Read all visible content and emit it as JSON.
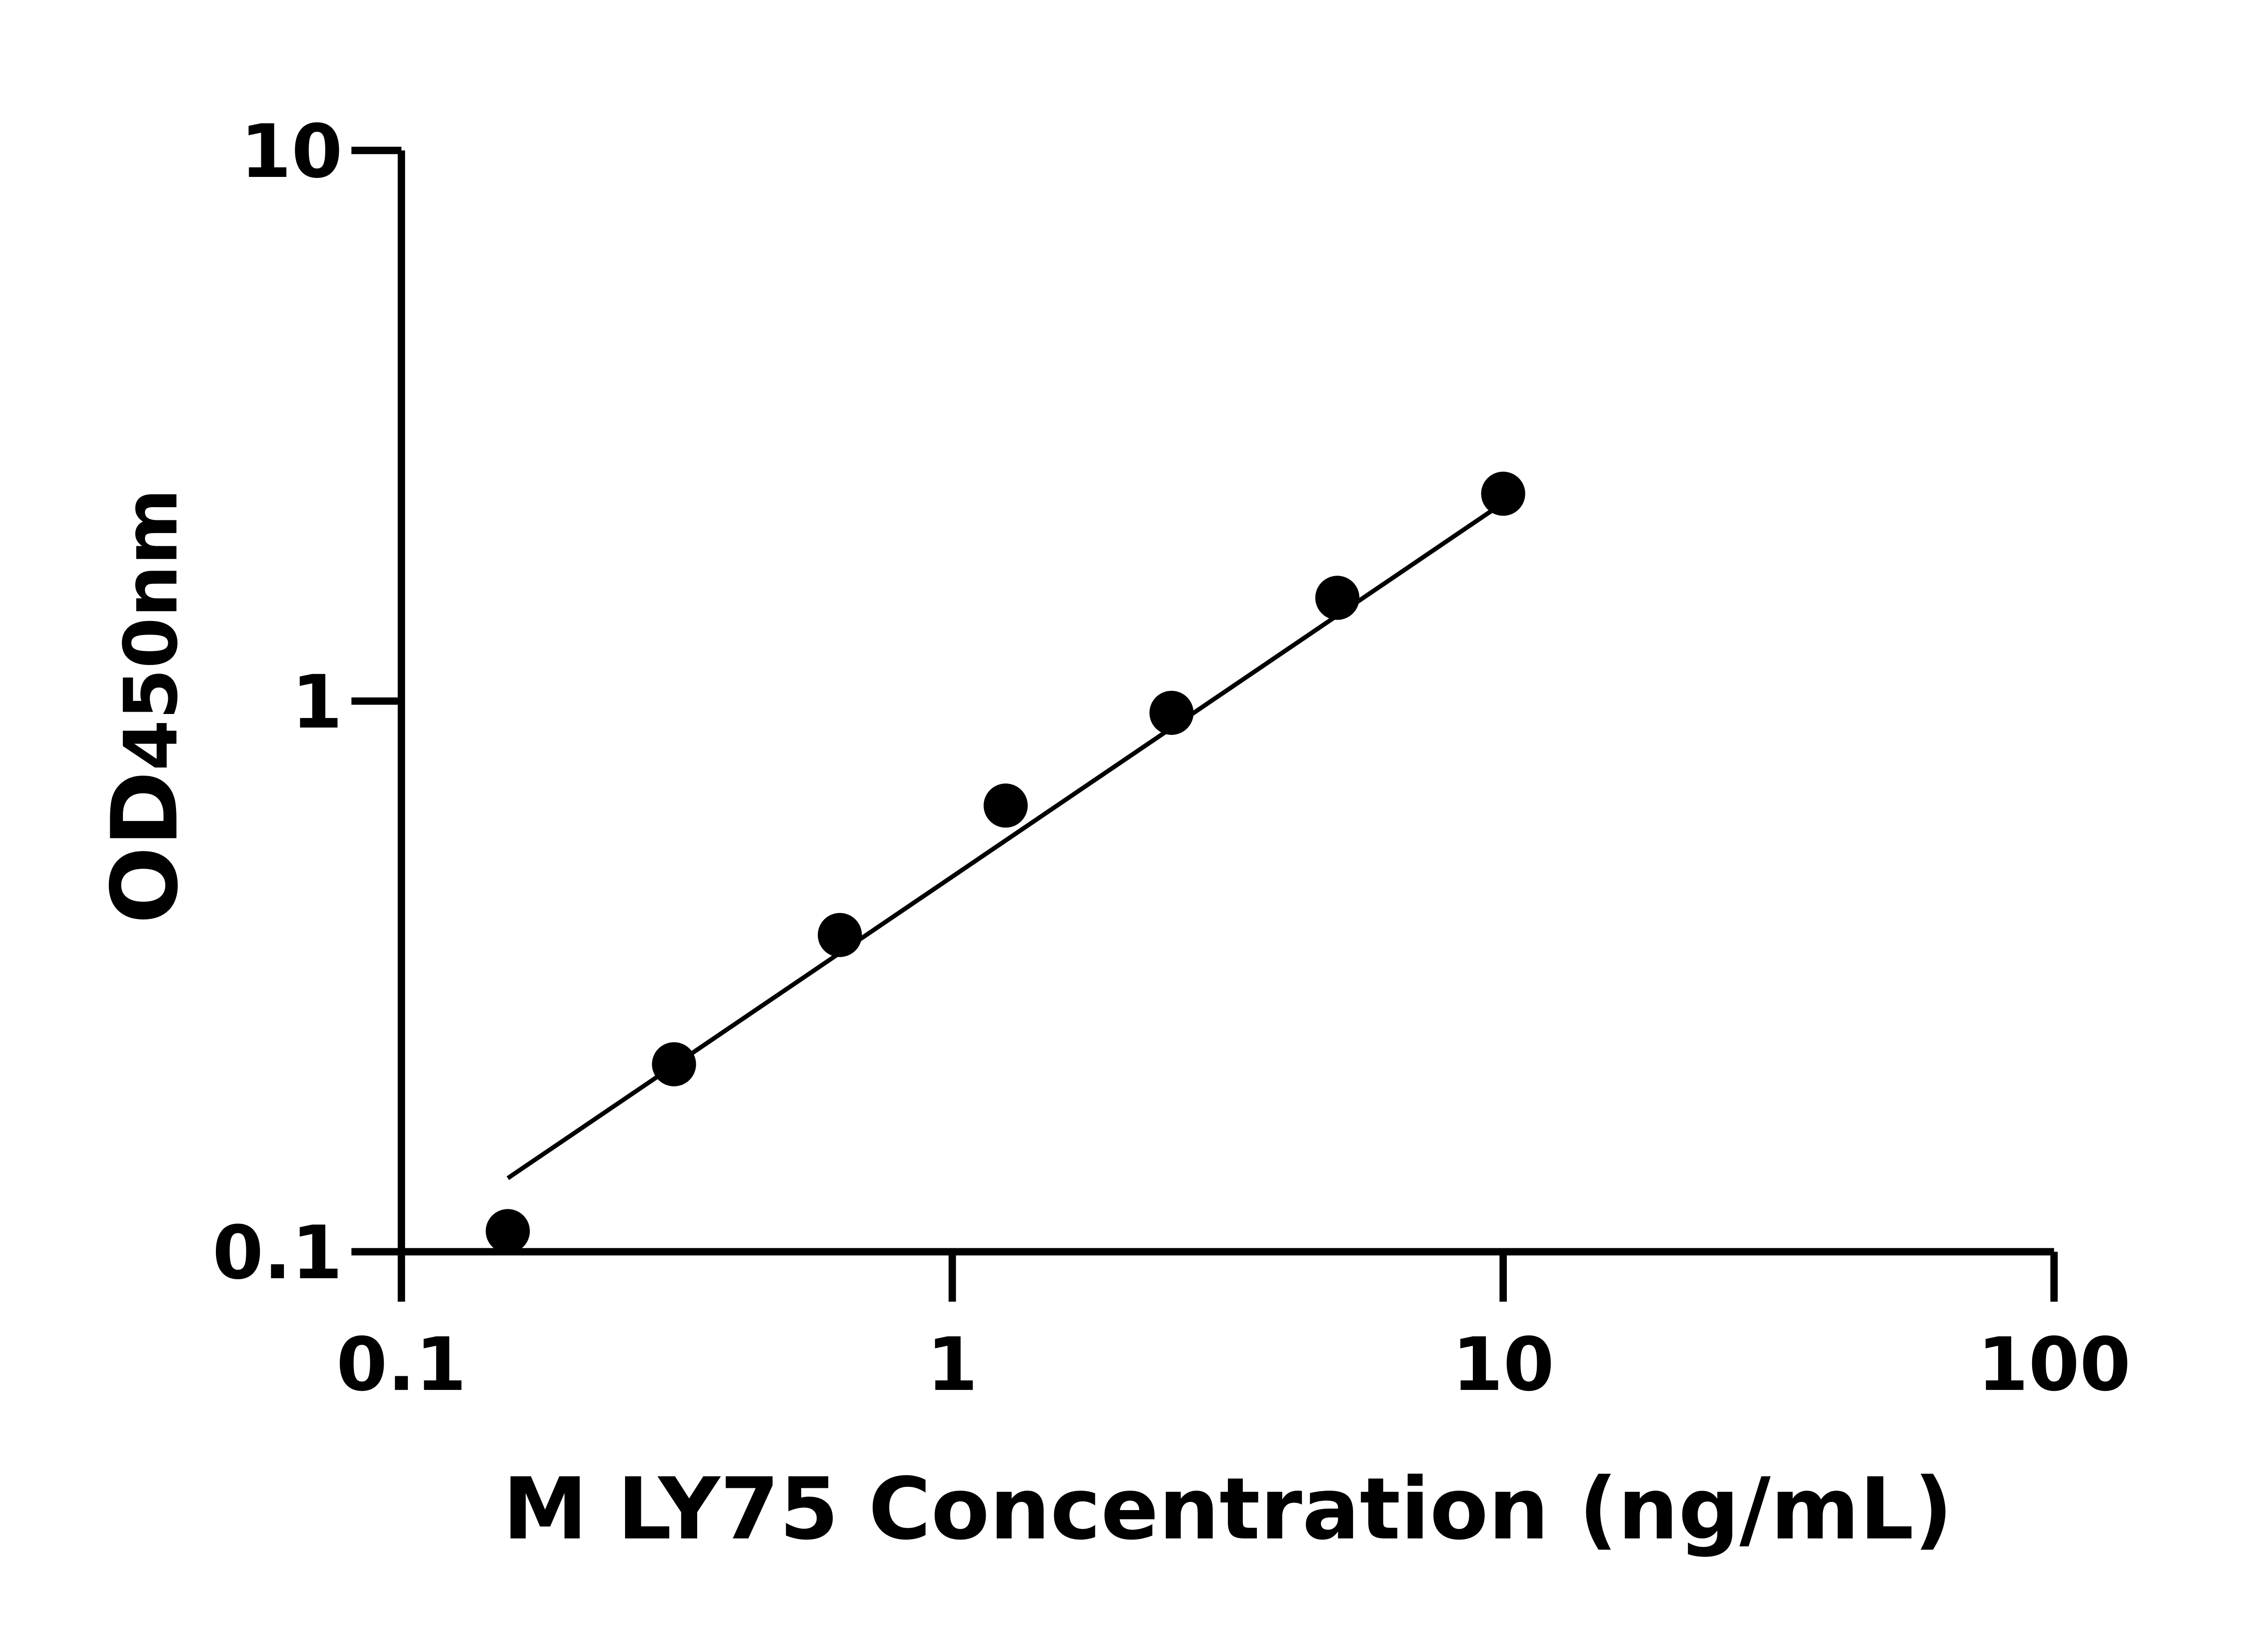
{
  "chart_data": {
    "type": "scatter",
    "title": "",
    "xlabel": "M LY75 Concentration (ng/mL)",
    "ylabel": {
      "main": "OD",
      "sub": "450nm"
    },
    "xscale": "log",
    "yscale": "log",
    "xlim": [
      0.1,
      100
    ],
    "ylim": [
      0.1,
      10
    ],
    "xticks": [
      {
        "v": 0.1,
        "label": "0.1"
      },
      {
        "v": 1,
        "label": "1"
      },
      {
        "v": 10,
        "label": "10"
      },
      {
        "v": 100,
        "label": "100"
      }
    ],
    "yticks": [
      {
        "v": 0.1,
        "label": "0.1"
      },
      {
        "v": 1,
        "label": "1"
      },
      {
        "v": 10,
        "label": "10"
      }
    ],
    "grid": false,
    "legend": "none",
    "series": [
      {
        "x": [
          0.156,
          0.3125,
          0.625,
          1.25,
          2.5,
          5,
          10
        ],
        "y": [
          0.109,
          0.219,
          0.376,
          0.646,
          0.952,
          1.54,
          2.38
        ],
        "color": "#000000",
        "marker": "circle"
      }
    ],
    "fit_line": {
      "x": [
        0.156,
        10
      ],
      "y": [
        0.136,
        2.29
      ],
      "color": "#000000"
    }
  }
}
